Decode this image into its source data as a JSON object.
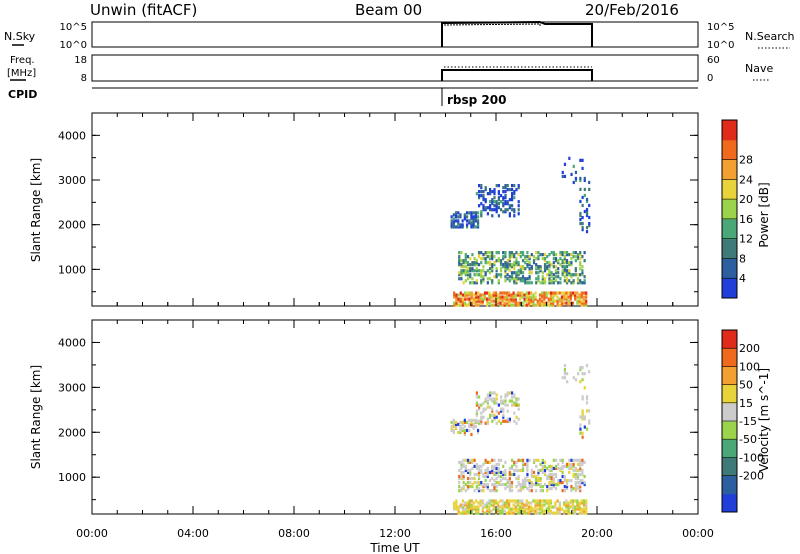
{
  "header": {
    "station": "Unwin (fitACF)",
    "beam": "Beam 00",
    "date": "20/Feb/2016"
  },
  "panels": {
    "nsky": {
      "left_label": "N.Sky",
      "left_ticks": [
        "10^5",
        "10^0"
      ],
      "right_ticks": [
        "10^5",
        "10^0"
      ],
      "right_label": "N.Search"
    },
    "freq": {
      "left_label_top": "Freq.",
      "left_label_bottom": "[MHz]",
      "left_ticks": [
        "18",
        "8"
      ],
      "right_ticks": [
        "60",
        "0"
      ],
      "right_label": "Nave"
    },
    "cpid": {
      "label": "CPID",
      "program": "rbsp 200"
    }
  },
  "chart_data": [
    {
      "type": "heatmap",
      "title": "",
      "ylabel": "Slant Range [km]",
      "xlabel": "",
      "ylim": [
        180,
        4500
      ],
      "y_ticks": [
        "1000",
        "2000",
        "3000",
        "4000"
      ],
      "colorbar": {
        "label": "Power [dB]",
        "ticks": [
          "4",
          "8",
          "12",
          "16",
          "20",
          "24",
          "28"
        ],
        "colors": [
          "#1f3fd8",
          "#2c5fa0",
          "#3f7a78",
          "#4aa878",
          "#9bd34a",
          "#e8d33a",
          "#f2a030",
          "#ef6a1c",
          "#e02a1a"
        ]
      },
      "grid": false
    },
    {
      "type": "heatmap",
      "title": "",
      "ylabel": "Slant Range [km]",
      "xlabel": "Time UT",
      "ylim": [
        180,
        4500
      ],
      "y_ticks": [
        "1000",
        "2000",
        "3000",
        "4000"
      ],
      "x_ticks": [
        "00:00",
        "04:00",
        "08:00",
        "12:00",
        "16:00",
        "20:00",
        "00:00"
      ],
      "colorbar": {
        "label": "Velocity [m s^-1]",
        "ticks": [
          "200",
          "100",
          "50",
          "15",
          "-15",
          "-50",
          "-100",
          "-200"
        ],
        "colors": [
          "#1f3fd8",
          "#2c5fa0",
          "#3f7a78",
          "#4aa878",
          "#9bd34a",
          "#cccccc",
          "#e8d33a",
          "#f2a030",
          "#ef6a1c",
          "#e02a1a"
        ]
      },
      "grid": false
    }
  ],
  "data_extent": {
    "start_hour": 14.0,
    "end_hour": 20.0
  }
}
